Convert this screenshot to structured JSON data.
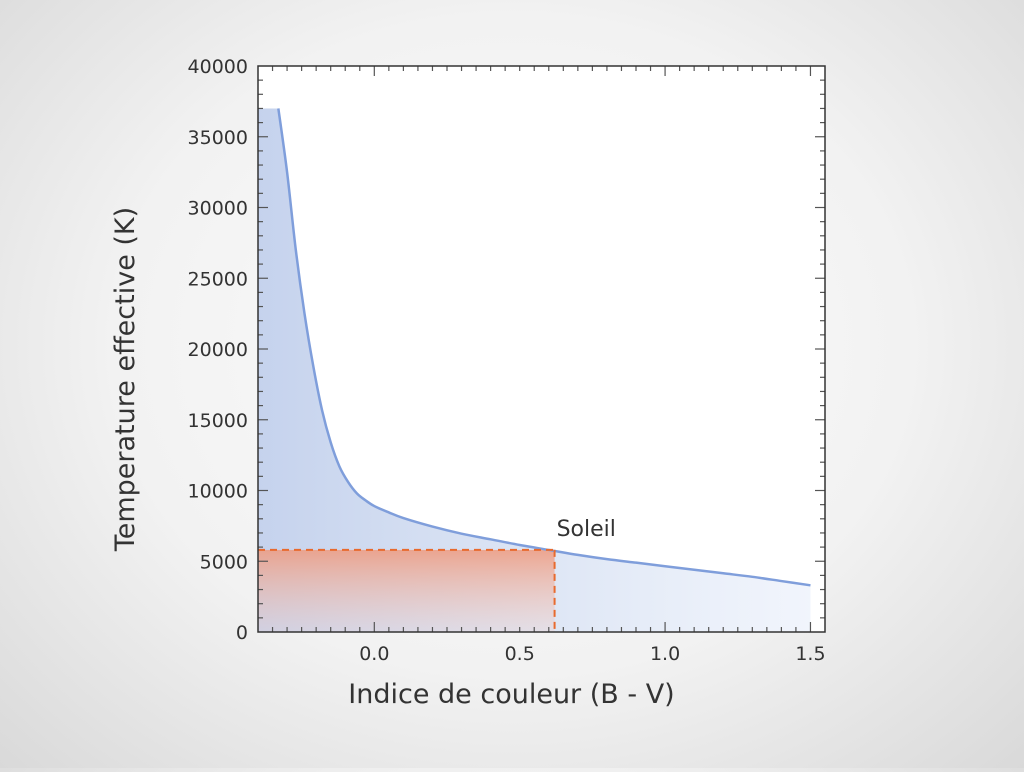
{
  "chart_data": {
    "type": "line",
    "title": "",
    "xlabel": "Indice de couleur (B - V)",
    "ylabel": "Temperature effective (K)",
    "xlim": [
      -0.4,
      1.55
    ],
    "ylim": [
      0,
      40000
    ],
    "x_ticks": [
      {
        "value": 0.0,
        "label": "0.0"
      },
      {
        "value": 0.5,
        "label": "0.5"
      },
      {
        "value": 1.0,
        "label": "1.0"
      },
      {
        "value": 1.5,
        "label": "1.5"
      }
    ],
    "y_ticks": [
      {
        "value": 0,
        "label": "0"
      },
      {
        "value": 5000,
        "label": "5000"
      },
      {
        "value": 10000,
        "label": "10000"
      },
      {
        "value": 15000,
        "label": "15000"
      },
      {
        "value": 20000,
        "label": "20000"
      },
      {
        "value": 25000,
        "label": "25000"
      },
      {
        "value": 30000,
        "label": "30000"
      },
      {
        "value": 35000,
        "label": "35000"
      },
      {
        "value": 40000,
        "label": "40000"
      }
    ],
    "grid": false,
    "series": [
      {
        "color": "#7f9edb",
        "fill": "#c8d5ee",
        "x": [
          -0.33,
          -0.3,
          -0.27,
          -0.24,
          -0.21,
          -0.18,
          -0.15,
          -0.12,
          -0.09,
          -0.06,
          -0.03,
          0.0,
          0.05,
          0.1,
          0.2,
          0.3,
          0.4,
          0.5,
          0.6,
          0.7,
          0.8,
          0.9,
          1.0,
          1.1,
          1.2,
          1.3,
          1.4,
          1.5
        ],
        "y": [
          37000,
          32500,
          27000,
          22500,
          18800,
          15700,
          13400,
          11700,
          10600,
          9800,
          9300,
          8900,
          8450,
          8050,
          7450,
          6950,
          6550,
          6150,
          5800,
          5450,
          5150,
          4900,
          4650,
          4400,
          4150,
          3900,
          3600,
          3300
        ]
      }
    ],
    "annotations": [
      {
        "text": "Soleil",
        "x": 0.62,
        "y": 5800,
        "color": "#e86a2e"
      }
    ]
  }
}
